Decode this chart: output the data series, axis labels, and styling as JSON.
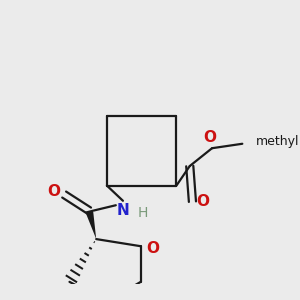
{
  "bg_color": "#ebebeb",
  "bond_color": "#1a1a1a",
  "N_color": "#2222cc",
  "O_color": "#cc1111",
  "H_color": "#7a9a7a",
  "lw": 1.6,
  "fig_w": 3.0,
  "fig_h": 3.0,
  "dpi": 100,
  "xlim": [
    0,
    300
  ],
  "ylim": [
    0,
    300
  ]
}
